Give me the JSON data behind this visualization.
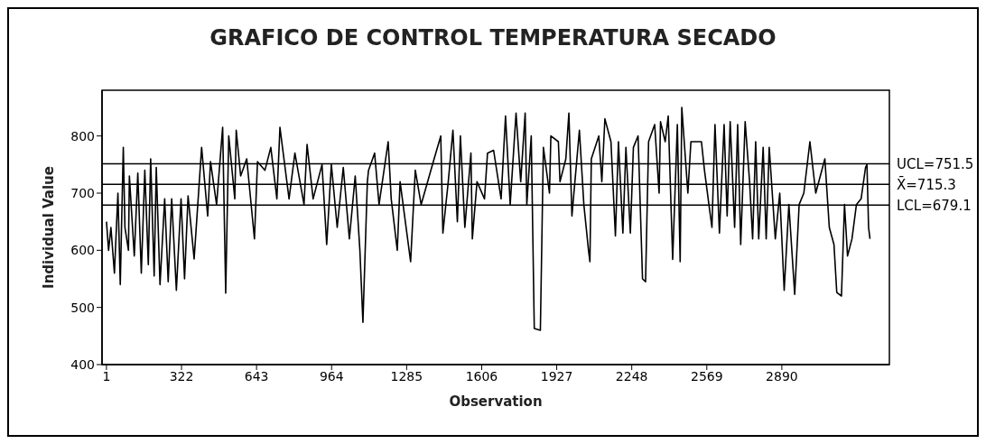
{
  "chart_data": {
    "type": "line",
    "title": "GRAFICO DE CONTROL TEMPERATURA SECADO",
    "xlabel": "Observation",
    "ylabel": "Individual Value",
    "x": [
      1,
      10,
      20,
      35,
      50,
      60,
      73,
      80,
      95,
      99,
      120,
      135,
      150,
      165,
      180,
      190,
      205,
      214,
      230,
      250,
      265,
      280,
      300,
      320,
      335,
      350,
      376,
      408,
      434,
      446,
      472,
      498,
      511,
      524,
      550,
      556,
      575,
      601,
      634,
      647,
      679,
      704,
      730,
      743,
      782,
      807,
      846,
      859,
      885,
      923,
      943,
      963,
      988,
      1014,
      1040,
      1065,
      1085,
      1098,
      1117,
      1122,
      1148,
      1167,
      1206,
      1219,
      1245,
      1257,
      1302,
      1322,
      1347,
      1399,
      1431,
      1440,
      1463,
      1483,
      1502,
      1515,
      1534,
      1560,
      1566,
      1586,
      1618,
      1631,
      1657,
      1689,
      1708,
      1728,
      1753,
      1773,
      1792,
      1799,
      1818,
      1831,
      1857,
      1870,
      1896,
      1902,
      1934,
      1941,
      1966,
      1979,
      1992,
      2024,
      2043,
      2063,
      2069,
      2075,
      2107,
      2120,
      2133,
      2159,
      2178,
      2191,
      2210,
      2223,
      2242,
      2255,
      2275,
      2294,
      2307,
      2320,
      2346,
      2365,
      2371,
      2391,
      2404,
      2423,
      2443,
      2455,
      2462,
      2488,
      2501,
      2520,
      2546,
      2559,
      2578,
      2591,
      2604,
      2623,
      2643,
      2656,
      2669,
      2688,
      2701,
      2714,
      2733,
      2752,
      2765,
      2778,
      2791,
      2810,
      2823,
      2836,
      2862,
      2881,
      2900,
      2920,
      2945,
      2964,
      2984,
      3010,
      3035,
      3074,
      3093,
      3113,
      3125,
      3145,
      3158,
      3171,
      3190,
      3209,
      3229,
      3248,
      3254,
      3261,
      3267
    ],
    "series": [
      {
        "color": "#000000",
        "values": [
          650,
          600,
          640,
          560,
          700,
          540,
          780,
          640,
          600,
          730,
          590,
          735,
          560,
          740,
          575,
          760,
          555,
          745,
          540,
          690,
          545,
          690,
          530,
          690,
          550,
          695,
          585,
          780,
          660,
          755,
          680,
          815,
          525,
          800,
          690,
          810,
          730,
          760,
          620,
          755,
          740,
          780,
          690,
          815,
          690,
          770,
          680,
          785,
          690,
          750,
          610,
          750,
          640,
          745,
          620,
          730,
          600,
          474,
          720,
          740,
          770,
          680,
          790,
          690,
          600,
          720,
          580,
          740,
          680,
          755,
          800,
          630,
          720,
          810,
          650,
          800,
          640,
          770,
          620,
          720,
          690,
          770,
          775,
          690,
          835,
          680,
          840,
          720,
          840,
          680,
          800,
          463,
          460,
          780,
          700,
          800,
          790,
          720,
          760,
          840,
          660,
          810,
          680,
          600,
          580,
          760,
          800,
          720,
          830,
          790,
          625,
          790,
          630,
          780,
          630,
          780,
          800,
          550,
          545,
          790,
          820,
          700,
          825,
          790,
          835,
          584,
          820,
          580,
          850,
          700,
          790,
          790,
          790,
          740,
          680,
          640,
          820,
          630,
          820,
          660,
          825,
          640,
          820,
          610,
          825,
          720,
          620,
          790,
          620,
          780,
          620,
          780,
          620,
          700,
          530,
          680,
          523,
          680,
          700,
          790,
          700,
          760,
          640,
          610,
          526,
          520,
          680,
          590,
          620,
          680,
          690,
          745,
          750,
          640,
          620
        ]
      }
    ],
    "xlim": [
      -18,
      3350
    ],
    "xticks": [
      1,
      322,
      643,
      964,
      1285,
      1606,
      1927,
      2248,
      2569,
      2890
    ],
    "ylim": [
      400,
      880
    ],
    "yticks": [
      400,
      500,
      600,
      700,
      800
    ],
    "ref_lines": [
      {
        "axis": "y",
        "value": 751.5,
        "label": "UCL=751.5"
      },
      {
        "axis": "y",
        "value": 715.3,
        "label": "X̄=715.3"
      },
      {
        "axis": "y",
        "value": 679.1,
        "label": "LCL=679.1"
      }
    ],
    "grid": false,
    "legend": false,
    "marker": "none"
  }
}
